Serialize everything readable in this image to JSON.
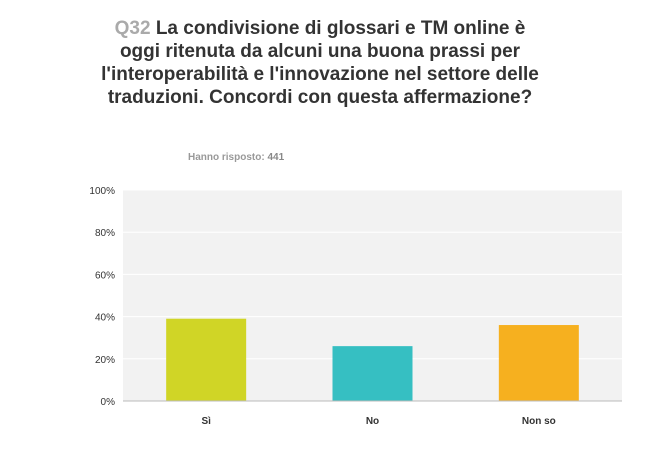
{
  "header": {
    "question_number": "Q32",
    "question_text": "La condivisione di glossari e TM online è oggi ritenuta da alcuni una buona prassi per l'interoperabilità e l'innovazione nel settore delle traduzioni. Concordi con questa affermazione?",
    "answered_label": "Hanno risposto:",
    "answered_count": "441"
  },
  "chart_data": {
    "type": "bar",
    "categories": [
      "Sì",
      "No",
      "Non so"
    ],
    "values": [
      39,
      26,
      36
    ],
    "colors": [
      "#d0d526",
      "#36bfc2",
      "#f6b01f"
    ],
    "ylim": [
      0,
      100
    ],
    "yticks": [
      "0%",
      "20%",
      "40%",
      "60%",
      "80%",
      "100%"
    ],
    "grid": true
  }
}
